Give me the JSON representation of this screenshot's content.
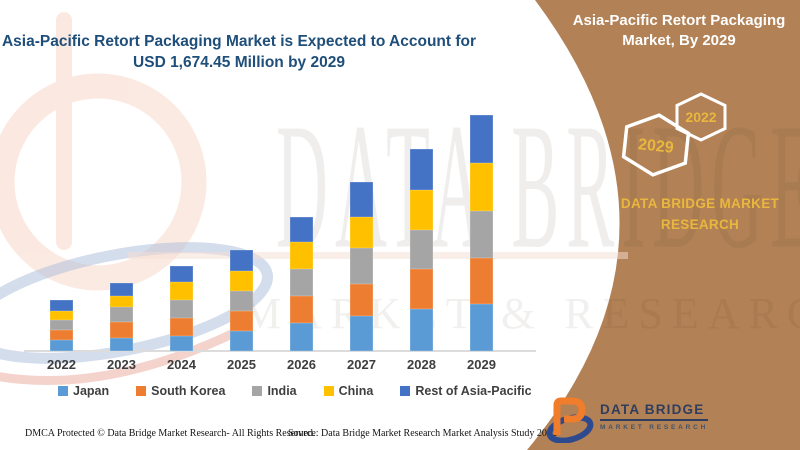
{
  "header": {
    "title_line1": "Asia-Pacific Retort Packaging Market is Expected to Account for",
    "title_line2": "USD 1,674.45 Million by 2029"
  },
  "side_panel": {
    "title": "Asia-Pacific Retort Packaging Market, By 2029",
    "hexagon_back_label": "2022",
    "hexagon_front_label": "2029",
    "brand_line1": "DATA BRIDGE MARKET",
    "brand_line2": "RESEARCH",
    "colors": {
      "panel_brown": "#b28155",
      "accent_gold": "#e9b73d",
      "hexagon_outline": "#ffffff"
    }
  },
  "logo": {
    "name": "DATA BRIDGE",
    "subtitle": "MARKET RESEARCH",
    "colors": {
      "navy": "#2f3e5e",
      "orange": "#ef7d2b",
      "blue": "#2e4a8f"
    }
  },
  "watermark": {
    "line1": "DATA BRIDGE",
    "line2": "MARKET & RESEARCH"
  },
  "footer": {
    "left": "DMCA Protected © Data Bridge Market Research- All Rights Reserved.",
    "right": "Source: Data Bridge Market Research Market Analysis Study 2022"
  },
  "chart_data": {
    "type": "bar",
    "stacked": true,
    "title": "Asia-Pacific Retort Packaging Market is Expected to Account for USD 1,674.45 Million by 2029",
    "unit": "USD Million",
    "categories": [
      "2022",
      "2023",
      "2024",
      "2025",
      "2026",
      "2027",
      "2028",
      "2029"
    ],
    "series": [
      {
        "name": "Japan",
        "color": "#5b9bd5",
        "values": [
          78,
          92,
          106,
          142,
          199,
          248,
          298,
          333
        ]
      },
      {
        "name": "South Korea",
        "color": "#ed7d31",
        "values": [
          71,
          114,
          128,
          142,
          192,
          227,
          284,
          326
        ]
      },
      {
        "name": "India",
        "color": "#a5a5a5",
        "values": [
          71,
          106,
          128,
          142,
          192,
          255,
          277,
          333
        ]
      },
      {
        "name": "China",
        "color": "#ffc000",
        "values": [
          64,
          78,
          128,
          142,
          192,
          220,
          284,
          341
        ]
      },
      {
        "name": "Rest of Asia-Pacific",
        "color": "#4472c4",
        "values": [
          78,
          92,
          113,
          149,
          177,
          248,
          291,
          341.45
        ]
      }
    ],
    "totals": [
      362,
      482,
      603,
      717,
      952,
      1198,
      1434,
      1674.45
    ],
    "ylim": [
      0,
      1674.45
    ],
    "grid": false,
    "y_axis_visible": false,
    "legend_position": "bottom"
  }
}
